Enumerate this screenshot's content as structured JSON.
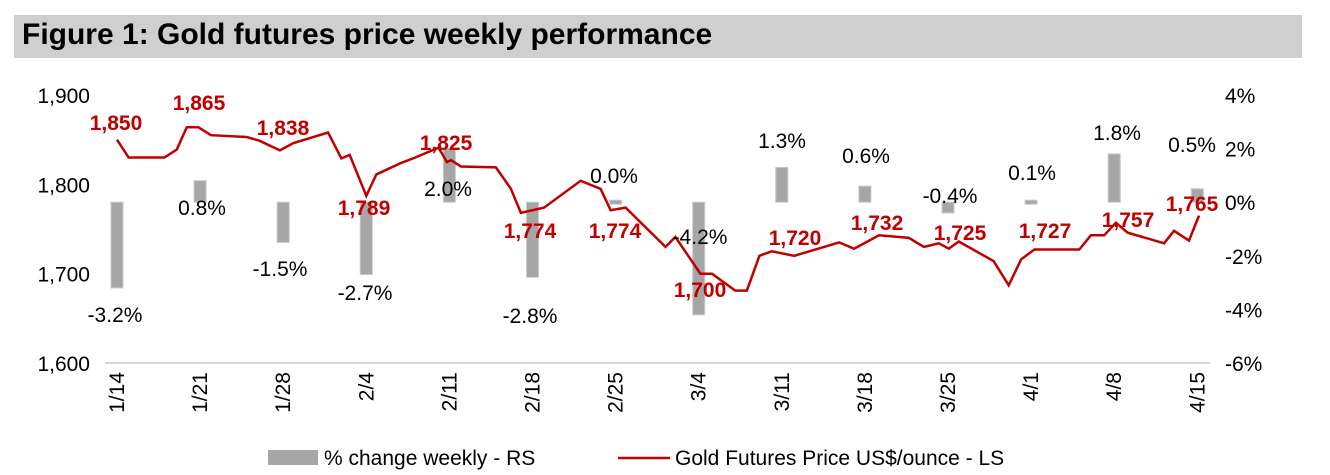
{
  "title": "Figure 1: Gold futures price weekly performance",
  "colors": {
    "line": "#c00000",
    "bar": "#a6a6a6",
    "title_bg": "#d0cfcf",
    "axis": "#d9d9d9"
  },
  "chart_data": {
    "type": "bar+line",
    "title": "Figure 1: Gold futures price weekly performance",
    "categories": [
      "1/14",
      "1/21",
      "1/28",
      "2/4",
      "2/11",
      "2/18",
      "2/25",
      "3/4",
      "3/11",
      "3/18",
      "3/25",
      "4/1",
      "4/8",
      "4/15"
    ],
    "left_axis": {
      "label": "Gold Futures Price US$/ounce",
      "range": [
        1600,
        1900
      ],
      "ticks": [
        "1,600",
        "1,700",
        "1,800",
        "1,900"
      ],
      "tick_values": [
        1600,
        1700,
        1800,
        1900
      ]
    },
    "right_axis": {
      "label": "% change weekly",
      "range": [
        -6,
        4
      ],
      "ticks": [
        "-6%",
        "-4%",
        "-2%",
        "0%",
        "2%",
        "4%"
      ],
      "tick_values": [
        -6,
        -4,
        -2,
        0,
        2,
        4
      ]
    },
    "series": [
      {
        "name": "% change weekly - RS",
        "type": "bar",
        "axis": "right",
        "values": [
          -3.2,
          0.8,
          -1.5,
          -2.7,
          2.0,
          -2.8,
          0.0,
          -4.2,
          1.3,
          0.6,
          -0.4,
          0.1,
          1.8,
          0.5
        ],
        "labels": [
          "-3.2%",
          "0.8%",
          "-1.5%",
          "-2.7%",
          "2.0%",
          "-2.8%",
          "0.0%",
          "-4.2%",
          "1.3%",
          "0.6%",
          "-0.4%",
          "0.1%",
          "1.8%",
          "0.5%"
        ]
      },
      {
        "name": "Gold Futures Price US$/ounce - LS",
        "type": "line",
        "axis": "left",
        "x": [
          0,
          0.14,
          0.57,
          0.72,
          0.84,
          0.98,
          1.13,
          1.56,
          1.71,
          1.96,
          2.12,
          2.54,
          2.7,
          2.8,
          3.0,
          3.12,
          3.42,
          3.59,
          3.87,
          3.97,
          4.02,
          4.14,
          4.56,
          4.74,
          4.86,
          5.14,
          5.58,
          5.82,
          5.94,
          6.12,
          6.6,
          6.72,
          7.02,
          7.16,
          7.44,
          7.58,
          7.73,
          7.88,
          8.15,
          8.69,
          8.87,
          9.17,
          9.53,
          9.71,
          9.89,
          10.01,
          10.13,
          10.55,
          10.73,
          10.88,
          11.04,
          11.58,
          11.72,
          11.88,
          12.02,
          12.16,
          12.6,
          12.72,
          12.9,
          13.02
        ],
        "values": [
          1850,
          1830,
          1830,
          1839,
          1864,
          1864,
          1855,
          1853,
          1849,
          1838,
          1846,
          1858,
          1829,
          1833,
          1787,
          1811,
          1824,
          1830,
          1841,
          1825,
          1827,
          1820,
          1819,
          1795,
          1768,
          1774,
          1804,
          1795,
          1771,
          1774,
          1730,
          1741,
          1700,
          1700,
          1681,
          1681,
          1720,
          1725,
          1720,
          1735,
          1728,
          1743,
          1740,
          1730,
          1734,
          1728,
          1736,
          1714,
          1687,
          1716,
          1727,
          1727,
          1743,
          1743,
          1757,
          1746,
          1734,
          1748,
          1737,
          1765
        ],
        "labels": [
          "1,850",
          "1,865",
          "1,838",
          "1,789",
          "1,825",
          "1,774",
          "1,774",
          "1,700",
          "1,720",
          "1,732",
          "1,725",
          "1,727",
          "1,757",
          "1,765"
        ]
      }
    ],
    "legend": [
      "% change weekly - RS",
      "Gold Futures Price US$/ounce - LS"
    ],
    "legend_position": "bottom",
    "grid": false
  }
}
